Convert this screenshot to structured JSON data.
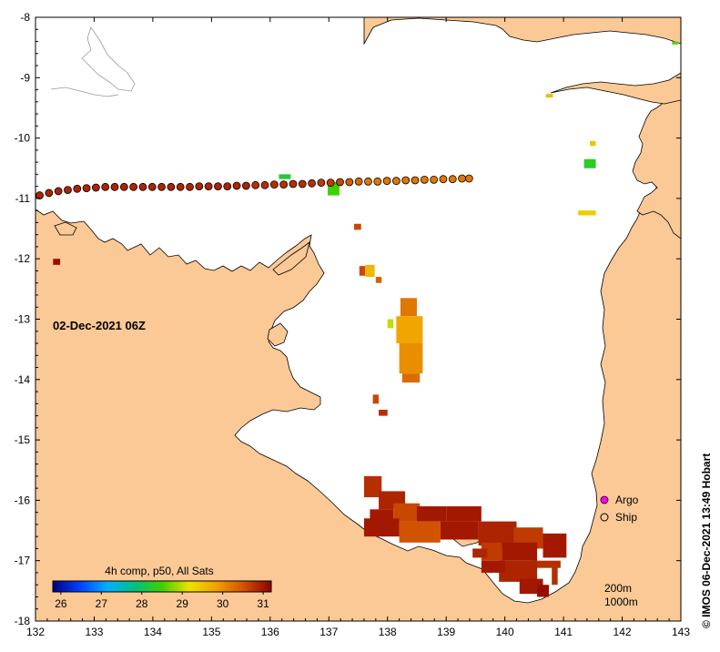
{
  "map": {
    "date_label": "02-Dec-2021 06Z",
    "credit": "© IMOS 06-Dec-2021 13:49 Hobart",
    "x_axis": {
      "ticks": [
        "132",
        "133",
        "134",
        "135",
        "136",
        "137",
        "138",
        "139",
        "140",
        "141",
        "142",
        "143"
      ],
      "range": [
        132,
        143
      ]
    },
    "y_axis": {
      "ticks": [
        "-8",
        "-9",
        "-10",
        "-11",
        "-12",
        "-13",
        "-14",
        "-15",
        "-16",
        "-17",
        "-18"
      ],
      "range": [
        -18,
        -8
      ]
    },
    "colorbar": {
      "title": "4h comp, p50, All Sats",
      "ticks": [
        "26",
        "27",
        "28",
        "29",
        "30",
        "31"
      ],
      "range": [
        25.8,
        31.2
      ],
      "colors": [
        "#000080",
        "#0040ff",
        "#00b0ff",
        "#00c080",
        "#40d000",
        "#f0e000",
        "#f0a000",
        "#d05000",
        "#900000"
      ]
    },
    "legend": {
      "items": [
        {
          "label": "Argo",
          "symbol": "magenta-circle"
        },
        {
          "label": "Ship",
          "symbol": "open-circle"
        }
      ]
    },
    "depth_contours": [
      "200m",
      "1000m"
    ],
    "colors": {
      "land": "#fbc996",
      "sea": "#ffffff",
      "coast": "#000000"
    }
  },
  "ship_track": {
    "positions": [
      {
        "lon": 132.07,
        "lat": -10.95,
        "t": 30.9
      },
      {
        "lon": 132.23,
        "lat": -10.91,
        "t": 30.9
      },
      {
        "lon": 132.39,
        "lat": -10.88,
        "t": 30.9
      },
      {
        "lon": 132.55,
        "lat": -10.86,
        "t": 30.9
      },
      {
        "lon": 132.71,
        "lat": -10.84,
        "t": 30.9
      },
      {
        "lon": 132.87,
        "lat": -10.83,
        "t": 30.9
      },
      {
        "lon": 133.03,
        "lat": -10.82,
        "t": 30.9
      },
      {
        "lon": 133.19,
        "lat": -10.81,
        "t": 30.9
      },
      {
        "lon": 133.35,
        "lat": -10.81,
        "t": 30.9
      },
      {
        "lon": 133.51,
        "lat": -10.81,
        "t": 30.9
      },
      {
        "lon": 133.67,
        "lat": -10.81,
        "t": 30.9
      },
      {
        "lon": 133.83,
        "lat": -10.81,
        "t": 30.9
      },
      {
        "lon": 133.99,
        "lat": -10.81,
        "t": 30.9
      },
      {
        "lon": 134.15,
        "lat": -10.81,
        "t": 30.9
      },
      {
        "lon": 134.31,
        "lat": -10.81,
        "t": 30.9
      },
      {
        "lon": 134.47,
        "lat": -10.81,
        "t": 30.9
      },
      {
        "lon": 134.63,
        "lat": -10.81,
        "t": 30.9
      },
      {
        "lon": 134.79,
        "lat": -10.8,
        "t": 30.9
      },
      {
        "lon": 134.95,
        "lat": -10.8,
        "t": 30.9
      },
      {
        "lon": 135.11,
        "lat": -10.8,
        "t": 30.9
      },
      {
        "lon": 135.27,
        "lat": -10.8,
        "t": 30.9
      },
      {
        "lon": 135.43,
        "lat": -10.79,
        "t": 30.9
      },
      {
        "lon": 135.59,
        "lat": -10.79,
        "t": 30.9
      },
      {
        "lon": 135.75,
        "lat": -10.78,
        "t": 30.8
      },
      {
        "lon": 135.91,
        "lat": -10.78,
        "t": 30.8
      },
      {
        "lon": 136.07,
        "lat": -10.77,
        "t": 30.8
      },
      {
        "lon": 136.23,
        "lat": -10.77,
        "t": 30.8
      },
      {
        "lon": 136.39,
        "lat": -10.76,
        "t": 30.8
      },
      {
        "lon": 136.55,
        "lat": -10.76,
        "t": 30.8
      },
      {
        "lon": 136.71,
        "lat": -10.75,
        "t": 30.8
      },
      {
        "lon": 136.87,
        "lat": -10.74,
        "t": 30.7
      },
      {
        "lon": 137.03,
        "lat": -10.74,
        "t": 30.7
      },
      {
        "lon": 137.19,
        "lat": -10.73,
        "t": 30.6
      },
      {
        "lon": 137.35,
        "lat": -10.73,
        "t": 30.4
      },
      {
        "lon": 137.51,
        "lat": -10.72,
        "t": 30.3
      },
      {
        "lon": 137.67,
        "lat": -10.72,
        "t": 30.2
      },
      {
        "lon": 137.83,
        "lat": -10.72,
        "t": 30.2
      },
      {
        "lon": 137.99,
        "lat": -10.71,
        "t": 30.2
      },
      {
        "lon": 138.15,
        "lat": -10.71,
        "t": 30.2
      },
      {
        "lon": 138.31,
        "lat": -10.7,
        "t": 30.2
      },
      {
        "lon": 138.47,
        "lat": -10.7,
        "t": 30.2
      },
      {
        "lon": 138.63,
        "lat": -10.69,
        "t": 30.2
      },
      {
        "lon": 138.79,
        "lat": -10.69,
        "t": 30.2
      },
      {
        "lon": 138.95,
        "lat": -10.68,
        "t": 30.2
      },
      {
        "lon": 139.11,
        "lat": -10.68,
        "t": 30.2
      },
      {
        "lon": 139.27,
        "lat": -10.67,
        "t": 30.2
      },
      {
        "lon": 139.39,
        "lat": -10.67,
        "t": 30.2
      }
    ]
  },
  "sst_patches": [
    {
      "lon": [
        137.52,
        137.62
      ],
      "lat": [
        -12.12,
        -12.28
      ],
      "t": 30.6
    },
    {
      "lon": [
        137.62,
        137.78
      ],
      "lat": [
        -12.1,
        -12.3
      ],
      "t": 29.6
    },
    {
      "lon": [
        137.8,
        137.9
      ],
      "lat": [
        -12.3,
        -12.4
      ],
      "t": 30.4
    },
    {
      "lon": [
        138.22,
        138.5
      ],
      "lat": [
        -12.65,
        -12.95
      ],
      "t": 30.2
    },
    {
      "lon": [
        138.15,
        138.6
      ],
      "lat": [
        -12.95,
        -13.4
      ],
      "t": 29.8
    },
    {
      "lon": [
        138.2,
        138.6
      ],
      "lat": [
        -13.4,
        -13.9
      ],
      "t": 30.0
    },
    {
      "lon": [
        138.25,
        138.55
      ],
      "lat": [
        -13.9,
        -14.05
      ],
      "t": 30.3
    },
    {
      "lon": [
        138.0,
        138.1
      ],
      "lat": [
        -13.0,
        -13.15
      ],
      "t": 29.0
    },
    {
      "lon": [
        137.43,
        137.55
      ],
      "lat": [
        -11.42,
        -11.52
      ],
      "t": 30.6
    },
    {
      "lon": [
        137.75,
        137.85
      ],
      "lat": [
        -14.25,
        -14.4
      ],
      "t": 30.6
    },
    {
      "lon": [
        137.85,
        138.0
      ],
      "lat": [
        -14.5,
        -14.6
      ],
      "t": 30.8
    },
    {
      "lon": [
        136.98,
        137.18
      ],
      "lat": [
        -10.73,
        -10.95
      ],
      "t": 28.5
    },
    {
      "lon": [
        136.15,
        136.35
      ],
      "lat": [
        -10.6,
        -10.68
      ],
      "t": 28.2
    },
    {
      "lon": [
        141.35,
        141.55
      ],
      "lat": [
        -10.35,
        -10.5
      ],
      "t": 28.3
    },
    {
      "lon": [
        141.25,
        141.55
      ],
      "lat": [
        -11.2,
        -11.28
      ],
      "t": 29.4
    },
    {
      "lon": [
        141.45,
        141.55
      ],
      "lat": [
        -10.05,
        -10.13
      ],
      "t": 29.5
    },
    {
      "lon": [
        140.7,
        140.82
      ],
      "lat": [
        -9.27,
        -9.33
      ],
      "t": 29.6
    },
    {
      "lon": [
        142.85,
        142.95
      ],
      "lat": [
        -8.4,
        -8.45
      ],
      "t": 28.6
    },
    {
      "lon": [
        137.6,
        137.9
      ],
      "lat": [
        -15.6,
        -15.95
      ],
      "t": 30.8
    },
    {
      "lon": [
        137.85,
        138.3
      ],
      "lat": [
        -15.85,
        -16.15
      ],
      "t": 30.9
    },
    {
      "lon": [
        137.7,
        138.1
      ],
      "lat": [
        -16.15,
        -16.45
      ],
      "t": 31.0
    },
    {
      "lon": [
        138.1,
        138.55
      ],
      "lat": [
        -16.05,
        -16.35
      ],
      "t": 30.6
    },
    {
      "lon": [
        138.5,
        139.0
      ],
      "lat": [
        -16.1,
        -16.35
      ],
      "t": 31.0
    },
    {
      "lon": [
        139.0,
        139.6
      ],
      "lat": [
        -16.1,
        -16.35
      ],
      "t": 31.0
    },
    {
      "lon": [
        138.2,
        138.9
      ],
      "lat": [
        -16.35,
        -16.7
      ],
      "t": 30.5
    },
    {
      "lon": [
        137.6,
        138.2
      ],
      "lat": [
        -16.3,
        -16.6
      ],
      "t": 31.0
    },
    {
      "lon": [
        138.9,
        139.55
      ],
      "lat": [
        -16.35,
        -16.65
      ],
      "t": 31.0
    },
    {
      "lon": [
        139.55,
        140.2
      ],
      "lat": [
        -16.35,
        -16.75
      ],
      "t": 30.9
    },
    {
      "lon": [
        140.15,
        140.65
      ],
      "lat": [
        -16.45,
        -16.8
      ],
      "t": 30.7
    },
    {
      "lon": [
        140.65,
        141.05
      ],
      "lat": [
        -16.55,
        -16.95
      ],
      "t": 31.0
    },
    {
      "lon": [
        139.6,
        139.95
      ],
      "lat": [
        -16.7,
        -17.0
      ],
      "t": 30.7
    },
    {
      "lon": [
        139.95,
        140.55
      ],
      "lat": [
        -16.7,
        -17.0
      ],
      "t": 31.0
    },
    {
      "lon": [
        140.45,
        140.95
      ],
      "lat": [
        -17.0,
        -17.12
      ],
      "t": 30.8
    },
    {
      "lon": [
        139.9,
        140.55
      ],
      "lat": [
        -17.0,
        -17.35
      ],
      "t": 30.9
    },
    {
      "lon": [
        140.25,
        140.65
      ],
      "lat": [
        -17.3,
        -17.55
      ],
      "t": 31.0
    },
    {
      "lon": [
        139.6,
        140.0
      ],
      "lat": [
        -17.0,
        -17.2
      ],
      "t": 31.0
    },
    {
      "lon": [
        139.45,
        139.7
      ],
      "lat": [
        -16.8,
        -16.95
      ],
      "t": 30.9
    },
    {
      "lon": [
        140.55,
        140.75
      ],
      "lat": [
        -17.4,
        -17.6
      ],
      "t": 31.1
    },
    {
      "lon": [
        140.8,
        140.9
      ],
      "lat": [
        -17.1,
        -17.4
      ],
      "t": 30.8
    },
    {
      "lon": [
        132.3,
        132.42
      ],
      "lat": [
        -12.0,
        -12.1
      ],
      "t": 31.1
    }
  ]
}
